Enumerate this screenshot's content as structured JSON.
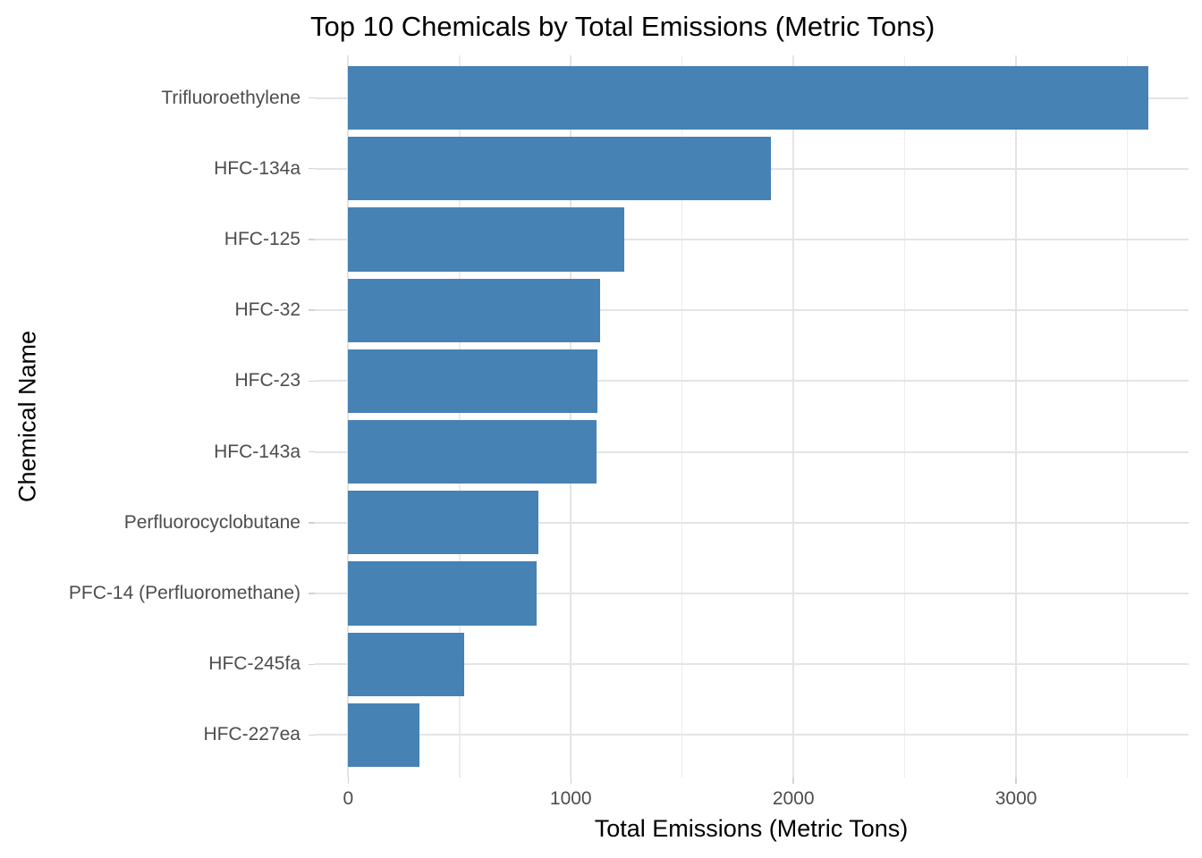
{
  "chart_data": {
    "type": "bar",
    "orientation": "horizontal",
    "title": "Top 10 Chemicals by Total Emissions (Metric Tons)",
    "xlabel": "Total Emissions (Metric Tons)",
    "ylabel": "Chemical Name",
    "categories": [
      "Trifluoroethylene",
      "HFC-134a",
      "HFC-125",
      "HFC-32",
      "HFC-23",
      "HFC-143a",
      "Perfluorocyclobutane",
      "PFC-14 (Perfluoromethane)",
      "HFC-245fa",
      "HFC-227ea"
    ],
    "values": [
      3595,
      1900,
      1240,
      1130,
      1120,
      1115,
      855,
      845,
      520,
      320
    ],
    "x_major_ticks": [
      0,
      1000,
      2000,
      3000
    ],
    "x_major_tick_labels": [
      "0",
      "1000",
      "2000",
      "3000"
    ],
    "x_minor_ticks": [
      500,
      1500,
      2500,
      3500
    ],
    "xlim": [
      -150,
      3775
    ],
    "bar_fill_fraction": 0.9,
    "category_expand": 0.6,
    "grid": "on",
    "legend": "none"
  },
  "colors": {
    "bar": "#4682B4",
    "grid_major": "#e4e4e4",
    "grid_minor": "#ececec",
    "axis_tick": "#d2d2d2",
    "axis_text": "#4d4d4d",
    "title_text": "#000000",
    "background": "#ffffff"
  }
}
